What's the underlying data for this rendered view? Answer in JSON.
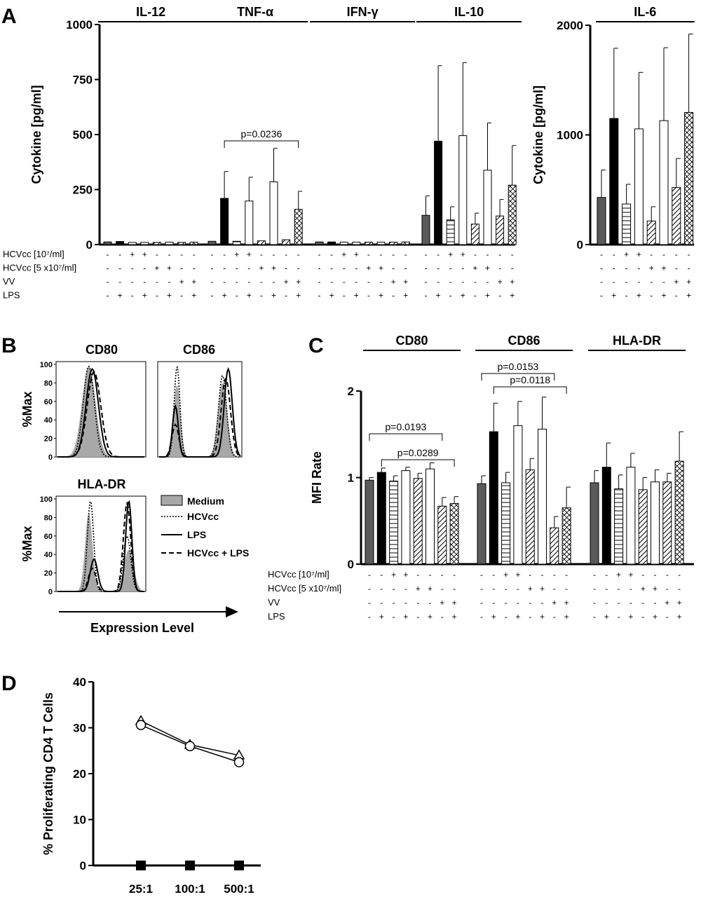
{
  "panel_labels": {
    "a": "A",
    "b": "B",
    "c": "C",
    "d": "D"
  },
  "colors": {
    "dark_gray": "#5a5a5a",
    "black": "#000000",
    "white": "#ffffff",
    "medium_gray": "#8c8c8c",
    "shade_gray": "#a8a8a8"
  },
  "condition_rows": {
    "labels": [
      "HCVcc [10⁷/ml]",
      "HCVcc [5 x10⁷/ml]",
      "VV",
      "LPS"
    ],
    "signs": [
      [
        "-",
        "-",
        "+",
        "+",
        "-",
        "-",
        "-",
        "-"
      ],
      [
        "-",
        "-",
        "-",
        "-",
        "+",
        "+",
        "-",
        "-"
      ],
      [
        "-",
        "-",
        "-",
        "-",
        "-",
        "-",
        "+",
        "+"
      ],
      [
        "-",
        "+",
        "-",
        "+",
        "-",
        "+",
        "-",
        "+"
      ]
    ]
  },
  "bar_styles": [
    "dark-gray",
    "black",
    "horizontal-lines",
    "white",
    "diagonal-lines",
    "white",
    "diagonal-lines",
    "crosshatch"
  ],
  "chart_data": [
    {
      "panel": "A",
      "type": "bar",
      "ylabel": "Cytokine [pg/ml]",
      "ylim": [
        0,
        1000
      ],
      "yticks": [
        "0",
        "250",
        "500",
        "750",
        "1000"
      ],
      "groups": [
        {
          "name": "IL-12",
          "values": [
            12,
            14,
            10,
            10,
            10,
            11,
            10,
            11
          ],
          "errors": [
            0,
            0,
            0,
            0,
            0,
            0,
            0,
            0
          ]
        },
        {
          "name": "TNF-α",
          "values": [
            15,
            210,
            15,
            198,
            17,
            285,
            22,
            160
          ],
          "errors": [
            0,
            122,
            0,
            108,
            0,
            152,
            0,
            82
          ]
        },
        {
          "name": "IFN-γ",
          "values": [
            12,
            12,
            11,
            11,
            11,
            11,
            11,
            12
          ],
          "errors": [
            0,
            0,
            0,
            0,
            0,
            0,
            0,
            0
          ]
        },
        {
          "name": "IL-10",
          "values": [
            133,
            470,
            112,
            495,
            93,
            338,
            130,
            270
          ],
          "errors": [
            88,
            343,
            60,
            332,
            50,
            215,
            75,
            180
          ]
        }
      ],
      "annotations": [
        {
          "text": "p=0.0236",
          "group": 1,
          "from_bar": 1,
          "to_bar": 7
        }
      ]
    },
    {
      "panel": "A",
      "type": "bar",
      "ylabel": "Cytokine [pg/ml]",
      "ylim": [
        0,
        2000
      ],
      "yticks": [
        "0",
        "1000",
        "2000"
      ],
      "groups": [
        {
          "name": "IL-6",
          "values": [
            430,
            1150,
            370,
            1055,
            215,
            1130,
            520,
            1205
          ],
          "errors": [
            250,
            640,
            180,
            515,
            130,
            665,
            265,
            715
          ]
        }
      ]
    },
    {
      "panel": "B",
      "type": "line",
      "xlabel": "Expression Level",
      "ylabel": "%Max",
      "ylim": [
        0,
        100
      ],
      "yticks": [
        "0",
        "20",
        "40",
        "60",
        "80",
        "100"
      ],
      "legend": [
        "Medium",
        "HCVcc",
        "LPS",
        "HCVcc + LPS"
      ],
      "histograms": [
        {
          "title": "CD80",
          "peaks": [
            [
              0.36,
              98,
              0.11
            ],
            [
              0.36,
              98,
              0.09
            ],
            [
              0.4,
              95,
              0.1
            ],
            [
              0.42,
              92,
              0.11
            ]
          ]
        },
        {
          "title": "CD86",
          "peaks": [
            [
              0.22,
              78,
              0.06
            ],
            [
              0.22,
              98,
              0.05
            ],
            [
              0.2,
              55,
              0.05
            ],
            [
              0.2,
              35,
              0.06
            ]
          ],
          "peaks2": [
            [
              0.78,
              80,
              0.08
            ],
            [
              0.78,
              88,
              0.07
            ],
            [
              0.85,
              95,
              0.07
            ],
            [
              0.82,
              85,
              0.08
            ]
          ]
        },
        {
          "title": "HLA-DR",
          "peaks": [
            [
              0.36,
              85,
              0.06
            ],
            [
              0.38,
              98,
              0.05
            ],
            [
              0.42,
              35,
              0.06
            ],
            [
              0.4,
              25,
              0.06
            ]
          ],
          "peaks2": [
            [
              0.82,
              45,
              0.08
            ],
            [
              0.8,
              60,
              0.06
            ],
            [
              0.82,
              98,
              0.05
            ],
            [
              0.8,
              95,
              0.06
            ]
          ]
        }
      ]
    },
    {
      "panel": "C",
      "type": "bar",
      "ylabel": "MFI Rate",
      "ylim": [
        0,
        2
      ],
      "yticks": [
        "0",
        "1",
        "2"
      ],
      "groups": [
        {
          "name": "CD80",
          "values": [
            0.97,
            1.06,
            0.96,
            1.08,
            0.99,
            1.1,
            0.67,
            0.7
          ],
          "errors": [
            0.03,
            0.05,
            0.06,
            0.04,
            0.06,
            0.07,
            0.1,
            0.08
          ]
        },
        {
          "name": "CD86",
          "values": [
            0.93,
            1.53,
            0.94,
            1.6,
            1.09,
            1.56,
            0.42,
            0.65
          ],
          "errors": [
            0.09,
            0.33,
            0.12,
            0.28,
            0.13,
            0.37,
            0.13,
            0.24
          ]
        },
        {
          "name": "HLA-DR",
          "values": [
            0.94,
            1.12,
            0.87,
            1.12,
            0.86,
            0.95,
            0.95,
            1.19
          ],
          "errors": [
            0.14,
            0.28,
            0.16,
            0.16,
            0.14,
            0.14,
            0.1,
            0.34
          ]
        }
      ],
      "annotations": [
        {
          "text": "p=0.0193",
          "group": 0,
          "from_bar": 0,
          "to_bar": 6
        },
        {
          "text": "p=0.0289",
          "group": 0,
          "from_bar": 1,
          "to_bar": 7
        },
        {
          "text": "p=0.0153",
          "group": 1,
          "from_bar": 0,
          "to_bar": 6
        },
        {
          "text": "p=0.0118",
          "group": 1,
          "from_bar": 1,
          "to_bar": 7
        }
      ]
    },
    {
      "panel": "D",
      "type": "line",
      "ylabel": "% Proliferating CD4 T Cells",
      "ylim": [
        0,
        40
      ],
      "yticks": [
        "0",
        "10",
        "20",
        "30",
        "40"
      ],
      "categories": [
        "25:1",
        "100:1",
        "500:1"
      ],
      "series": [
        {
          "marker": "triangle",
          "values": [
            31.5,
            26.3,
            24
          ]
        },
        {
          "marker": "circle",
          "values": [
            30.6,
            26,
            22.5
          ]
        },
        {
          "marker": "square",
          "values": [
            0,
            0,
            0
          ]
        }
      ]
    }
  ]
}
